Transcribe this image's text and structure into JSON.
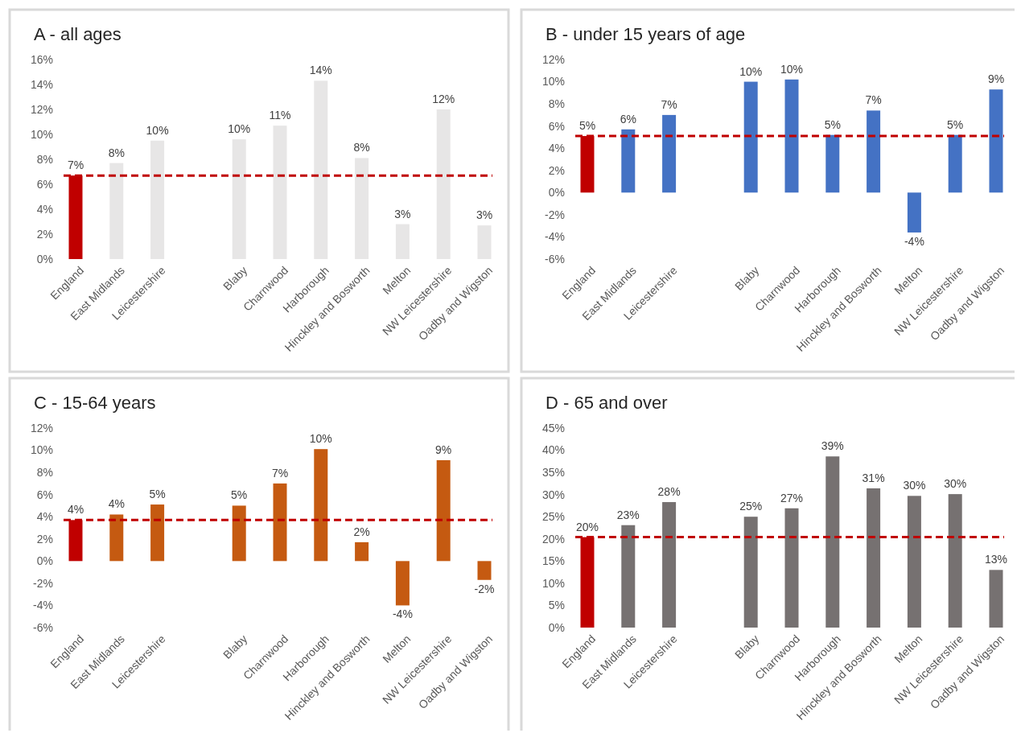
{
  "chart_data": [
    {
      "type": "bar",
      "title": "A - all ages",
      "categories": [
        "England",
        "East Midlands",
        "Leicestershire",
        null,
        "Blaby",
        "Charnwood",
        "Harborough",
        "Hinckley and Bosworth",
        "Melton",
        "NW Leicestershire",
        "Oadby and Wigston"
      ],
      "values": [
        6.7,
        7.7,
        9.5,
        null,
        9.6,
        10.7,
        14.3,
        8.1,
        2.8,
        12.0,
        2.7
      ],
      "colors": [
        "#c00000",
        "#e7e6e6",
        "#e7e6e6",
        null,
        "#e7e6e6",
        "#e7e6e6",
        "#e7e6e6",
        "#e7e6e6",
        "#e7e6e6",
        "#e7e6e6",
        "#e7e6e6"
      ],
      "value_labels": [
        "7%",
        "8%",
        "10%",
        null,
        "10%",
        "11%",
        "14%",
        "8%",
        "3%",
        "12%",
        "3%"
      ],
      "ylim": [
        0,
        16
      ],
      "yticks": [
        {
          "value": 0,
          "label": "0%"
        },
        {
          "value": 2,
          "label": "2%"
        },
        {
          "value": 4,
          "label": "4%"
        },
        {
          "value": 6,
          "label": "6%"
        },
        {
          "value": 8,
          "label": "8%"
        },
        {
          "value": 10,
          "label": "10%"
        },
        {
          "value": 12,
          "label": "12%"
        },
        {
          "value": 14,
          "label": "14%"
        },
        {
          "value": 16,
          "label": "16%"
        }
      ],
      "ref_lines": [
        {
          "axis": "y",
          "value": 6.7,
          "color": "#c00000",
          "line_style": "dashed"
        }
      ],
      "grid": false
    },
    {
      "type": "bar",
      "title": "B - under 15 years of age",
      "categories": [
        "England",
        "East Midlands",
        "Leicestershire",
        null,
        "Blaby",
        "Charnwood",
        "Harborough",
        "Hinckley and Bosworth",
        "Melton",
        "NW Leicestershire",
        "Oadby and Wigston"
      ],
      "values": [
        5.1,
        5.7,
        7.0,
        null,
        10.0,
        10.2,
        5.2,
        7.4,
        -3.6,
        5.2,
        9.3
      ],
      "colors": [
        "#c00000",
        "#4472c4",
        "#4472c4",
        null,
        "#4472c4",
        "#4472c4",
        "#4472c4",
        "#4472c4",
        "#4472c4",
        "#4472c4",
        "#4472c4"
      ],
      "value_labels": [
        "5%",
        "6%",
        "7%",
        null,
        "10%",
        "10%",
        "5%",
        "7%",
        "-4%",
        "5%",
        "9%"
      ],
      "ylim": [
        -6,
        12
      ],
      "yticks": [
        {
          "value": -6,
          "label": "-6%"
        },
        {
          "value": -4,
          "label": "-4%"
        },
        {
          "value": -2,
          "label": "-2%"
        },
        {
          "value": 0,
          "label": "0%"
        },
        {
          "value": 2,
          "label": "2%"
        },
        {
          "value": 4,
          "label": "4%"
        },
        {
          "value": 6,
          "label": "6%"
        },
        {
          "value": 8,
          "label": "8%"
        },
        {
          "value": 10,
          "label": "10%"
        },
        {
          "value": 12,
          "label": "12%"
        }
      ],
      "ref_lines": [
        {
          "axis": "y",
          "value": 5.1,
          "color": "#c00000",
          "line_style": "dashed"
        }
      ],
      "grid": false
    },
    {
      "type": "bar",
      "title": "C - 15-64 years",
      "categories": [
        "England",
        "East Midlands",
        "Leicestershire",
        null,
        "Blaby",
        "Charnwood",
        "Harborough",
        "Hinckley and Bosworth",
        "Melton",
        "NW Leicestershire",
        "Oadby and Wigston"
      ],
      "values": [
        3.7,
        4.2,
        5.1,
        null,
        5.0,
        7.0,
        10.1,
        1.7,
        -4.0,
        9.1,
        -1.7
      ],
      "colors": [
        "#c00000",
        "#c55a11",
        "#c55a11",
        null,
        "#c55a11",
        "#c55a11",
        "#c55a11",
        "#c55a11",
        "#c55a11",
        "#c55a11",
        "#c55a11"
      ],
      "value_labels": [
        "4%",
        "4%",
        "5%",
        null,
        "5%",
        "7%",
        "10%",
        "2%",
        "-4%",
        "9%",
        "-2%"
      ],
      "ylim": [
        -6,
        12
      ],
      "yticks": [
        {
          "value": -6,
          "label": "-6%"
        },
        {
          "value": -4,
          "label": "-4%"
        },
        {
          "value": -2,
          "label": "-2%"
        },
        {
          "value": 0,
          "label": "0%"
        },
        {
          "value": 2,
          "label": "2%"
        },
        {
          "value": 4,
          "label": "4%"
        },
        {
          "value": 6,
          "label": "6%"
        },
        {
          "value": 8,
          "label": "8%"
        },
        {
          "value": 10,
          "label": "10%"
        },
        {
          "value": 12,
          "label": "12%"
        }
      ],
      "ref_lines": [
        {
          "axis": "y",
          "value": 3.7,
          "color": "#c00000",
          "line_style": "dashed"
        }
      ],
      "grid": false
    },
    {
      "type": "bar",
      "title": "D - 65 and over",
      "categories": [
        "England",
        "East Midlands",
        "Leicestershire",
        null,
        "Blaby",
        "Charnwood",
        "Harborough",
        "Hinckley and Bosworth",
        "Melton",
        "NW Leicestershire",
        "Oadby and Wigston"
      ],
      "values": [
        20.4,
        23.1,
        28.3,
        null,
        25.0,
        26.9,
        38.6,
        31.4,
        29.7,
        30.1,
        13.0
      ],
      "colors": [
        "#c00000",
        "#767171",
        "#767171",
        null,
        "#767171",
        "#767171",
        "#767171",
        "#767171",
        "#767171",
        "#767171",
        "#767171"
      ],
      "value_labels": [
        "20%",
        "23%",
        "28%",
        null,
        "25%",
        "27%",
        "39%",
        "31%",
        "30%",
        "30%",
        "13%"
      ],
      "ylim": [
        0,
        45
      ],
      "yticks": [
        {
          "value": 0,
          "label": "0%"
        },
        {
          "value": 5,
          "label": "5%"
        },
        {
          "value": 10,
          "label": "10%"
        },
        {
          "value": 15,
          "label": "15%"
        },
        {
          "value": 20,
          "label": "20%"
        },
        {
          "value": 25,
          "label": "25%"
        },
        {
          "value": 30,
          "label": "30%"
        },
        {
          "value": 35,
          "label": "35%"
        },
        {
          "value": 40,
          "label": "40%"
        },
        {
          "value": 45,
          "label": "45%"
        }
      ],
      "ref_lines": [
        {
          "axis": "y",
          "value": 20.4,
          "color": "#c00000",
          "line_style": "dashed"
        }
      ],
      "grid": false
    }
  ]
}
